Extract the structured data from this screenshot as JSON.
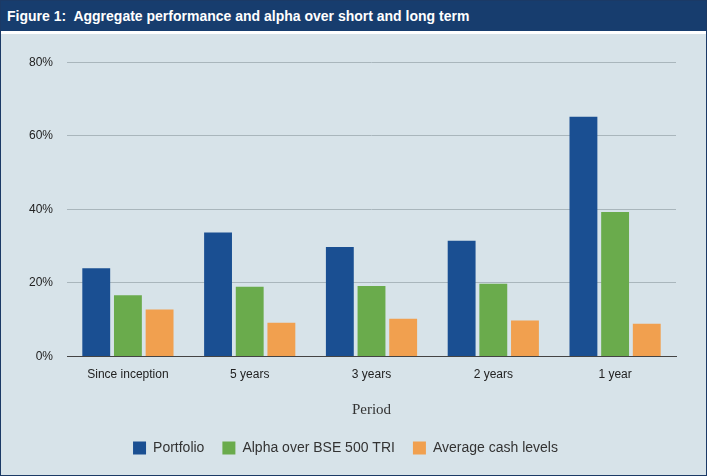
{
  "chart_data": {
    "type": "bar",
    "title": "Figure 1:  Aggregate performance and alpha over short and long term",
    "x_label": "Period",
    "categories": [
      "Since inception",
      "5 years",
      "3 years",
      "2 years",
      "1 year"
    ],
    "series": [
      {
        "name": "Portfolio",
        "color": "#1a4f92",
        "values": [
          24,
          33.7,
          29.8,
          31.5,
          65.2
        ]
      },
      {
        "name": "Alpha over BSE 500 TRI",
        "color": "#6aab4c",
        "values": [
          16.7,
          19,
          19.2,
          19.8,
          39.3
        ]
      },
      {
        "name": "Average cash levels",
        "color": "#f1a04f",
        "values": [
          12.8,
          9.2,
          10.3,
          9.8,
          8.9
        ]
      }
    ],
    "ylim": [
      0,
      80
    ],
    "yticks": [
      {
        "value": 0,
        "label": "0%"
      },
      {
        "value": 20,
        "label": "20%"
      },
      {
        "value": 40,
        "label": "40%"
      },
      {
        "value": 60,
        "label": "60%"
      },
      {
        "value": 80,
        "label": "80%"
      }
    ],
    "grid": true,
    "legend": "bottom"
  }
}
